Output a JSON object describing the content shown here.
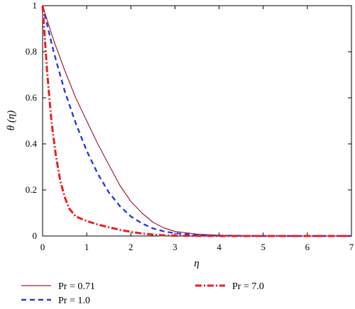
{
  "chart_data": {
    "type": "line",
    "title": "",
    "xlabel": "η",
    "ylabel": "θ (η)",
    "xlim": [
      0,
      7
    ],
    "ylim": [
      0,
      1
    ],
    "xticks": [
      "0",
      "1",
      "2",
      "3",
      "4",
      "5",
      "6",
      "7"
    ],
    "yticks": [
      "0",
      "0.2",
      "0.4",
      "0.6",
      "0.8",
      "1"
    ],
    "grid": false,
    "legend_placement": "bottom",
    "series": [
      {
        "name": "Pr = 0.71",
        "color": "#9b2335",
        "style": "solid",
        "x": [
          0,
          0.25,
          0.5,
          0.75,
          1.0,
          1.25,
          1.5,
          1.75,
          2.0,
          2.25,
          2.5,
          2.75,
          3.0,
          3.5,
          4.0,
          5.0,
          6.0,
          7.0
        ],
        "y": [
          1.0,
          0.85,
          0.72,
          0.6,
          0.5,
          0.4,
          0.31,
          0.22,
          0.15,
          0.1,
          0.06,
          0.035,
          0.02,
          0.008,
          0.003,
          0.001,
          0.0,
          0.0
        ]
      },
      {
        "name": "Pr = 1.0",
        "color": "#2a3bd4",
        "style": "dashed",
        "x": [
          0,
          0.25,
          0.5,
          0.75,
          1.0,
          1.25,
          1.5,
          1.75,
          2.0,
          2.25,
          2.5,
          2.75,
          3.0,
          3.5,
          4.0,
          5.0,
          6.0,
          7.0
        ],
        "y": [
          1.0,
          0.8,
          0.63,
          0.49,
          0.37,
          0.27,
          0.19,
          0.13,
          0.085,
          0.055,
          0.033,
          0.02,
          0.012,
          0.005,
          0.002,
          0.0,
          0.0,
          0.0
        ]
      },
      {
        "name": "Pr = 7.0",
        "color": "#e8201e",
        "style": "dashdot",
        "x": [
          0,
          0.1,
          0.2,
          0.3,
          0.4,
          0.5,
          0.6,
          0.75,
          1.0,
          1.25,
          1.5,
          1.75,
          2.0,
          2.25,
          2.5,
          2.75,
          3.0,
          3.5,
          4.0,
          5.0,
          6.0,
          7.0
        ],
        "y": [
          1.0,
          0.72,
          0.5,
          0.35,
          0.24,
          0.17,
          0.12,
          0.085,
          0.065,
          0.05,
          0.038,
          0.027,
          0.018,
          0.011,
          0.006,
          0.003,
          0.0015,
          0.0005,
          0.0,
          0.0,
          0.0,
          0.0
        ]
      }
    ]
  }
}
